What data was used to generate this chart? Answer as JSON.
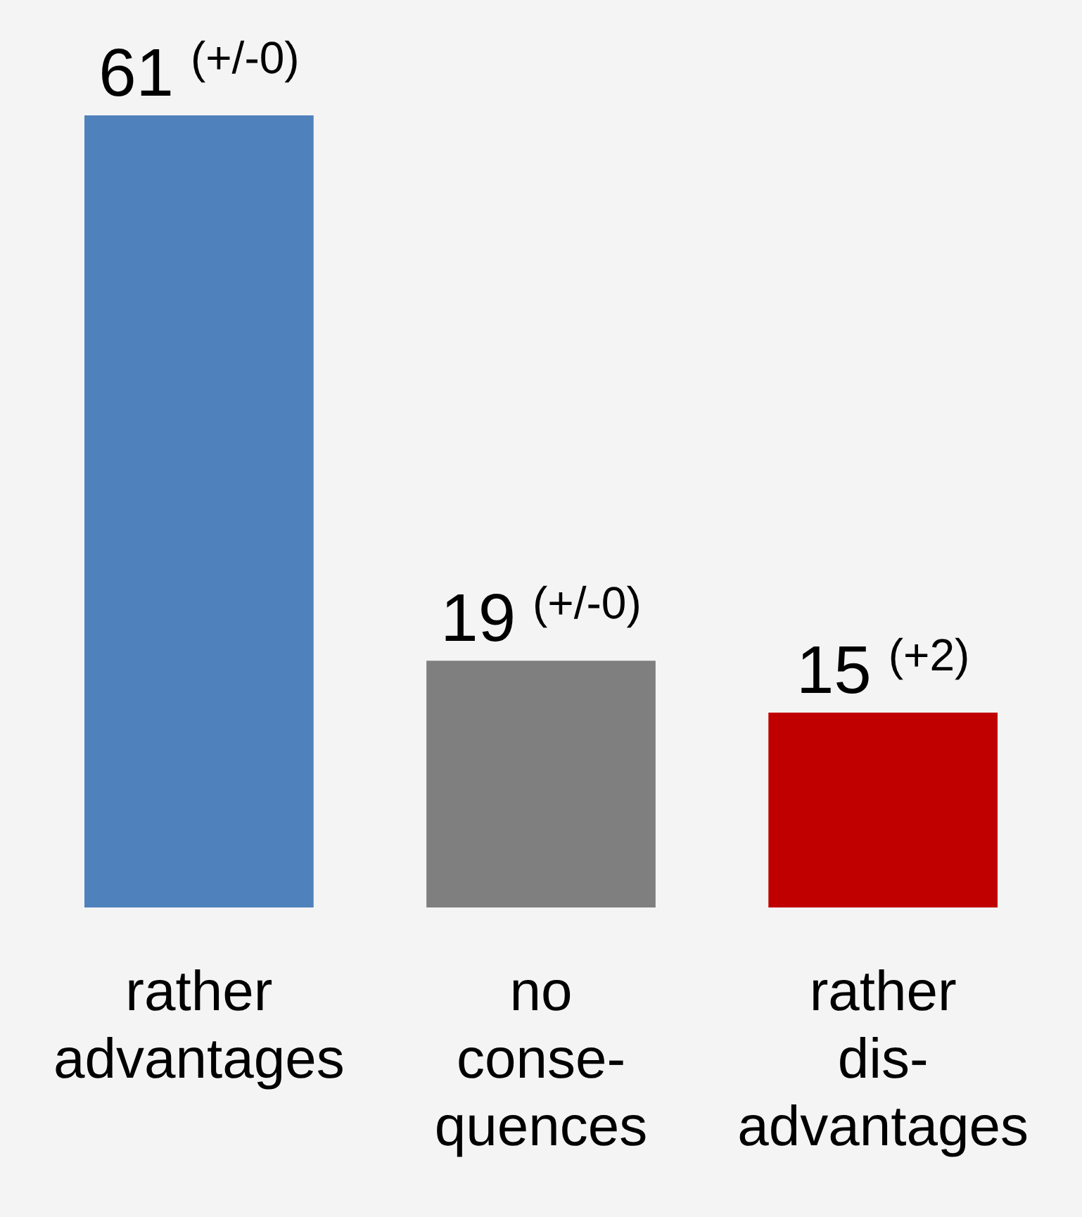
{
  "chart_data": {
    "type": "bar",
    "categories": [
      "rather advantages",
      "no conse- quences",
      "rather dis- advantages"
    ],
    "values": [
      61,
      19,
      15
    ],
    "colors": [
      "#4f81bd",
      "#7f7f7f",
      "#c00000"
    ],
    "data_labels": true,
    "grid": false,
    "legend": false,
    "annotations": [
      {
        "text": "(+/-0)",
        "x": "rather advantages",
        "y": 61
      },
      {
        "text": "(+/-0)",
        "x": "no conse- quences",
        "y": 19
      },
      {
        "text": "(+2)",
        "x": "rather dis- advantages",
        "y": 15
      }
    ]
  }
}
